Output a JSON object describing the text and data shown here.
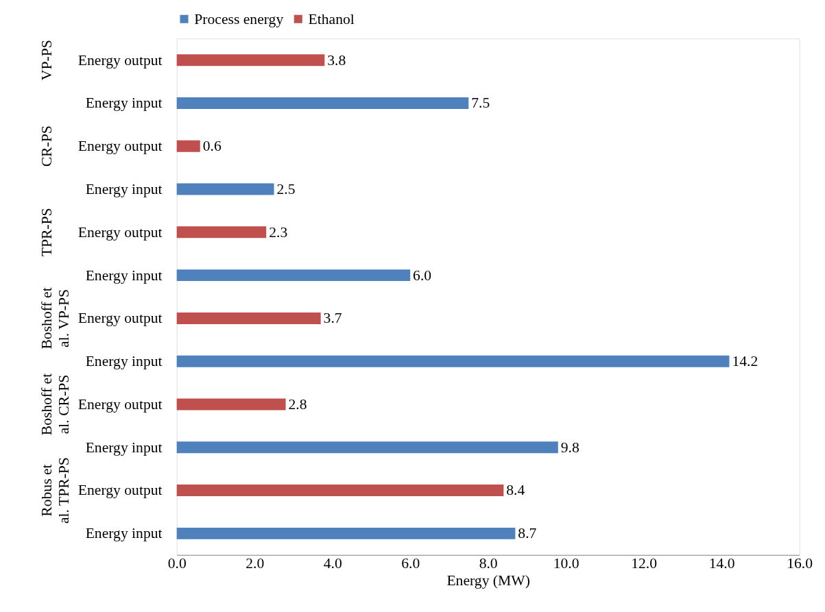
{
  "chart_data": {
    "type": "bar",
    "orientation": "horizontal",
    "xlabel": "Energy (MW)",
    "categories": [
      "Energy output",
      "Energy input",
      "Energy output",
      "Energy input",
      "Energy output",
      "Energy input",
      "Energy output",
      "Energy input",
      "Energy output",
      "Energy input",
      "Energy output",
      "Energy input"
    ],
    "annotations": [
      "VP-PS",
      "CR-PS",
      "TPR-PS",
      "Boshoff et al. VP-PS",
      "Boshoff et al. CR-PS",
      "Robus et al. TPR-PS"
    ],
    "series": [
      {
        "name": "Process energy",
        "color": "#4f81bd",
        "values": [
          null,
          7.5,
          null,
          2.5,
          null,
          6.0,
          null,
          14.2,
          null,
          9.8,
          null,
          8.7
        ],
        "value_labels": [
          null,
          "7.5",
          null,
          "2.5",
          null,
          "6.0",
          null,
          "14.2",
          null,
          "9.8",
          null,
          "8.7"
        ]
      },
      {
        "name": "Ethanol",
        "color": "#c0504d",
        "values": [
          3.8,
          null,
          0.6,
          null,
          2.3,
          null,
          3.7,
          null,
          2.8,
          null,
          8.4,
          null
        ],
        "value_labels": [
          "3.8",
          null,
          "0.6",
          null,
          "2.3",
          null,
          "3.7",
          null,
          "2.8",
          null,
          "8.4",
          null
        ]
      }
    ],
    "xlim": [
      0,
      16
    ],
    "xticks": [
      {
        "value": 0,
        "label": "0.0"
      },
      {
        "value": 2,
        "label": "2.0"
      },
      {
        "value": 4,
        "label": "4.0"
      },
      {
        "value": 6,
        "label": "6.0"
      },
      {
        "value": 8,
        "label": "8.0"
      },
      {
        "value": 10,
        "label": "10.0"
      },
      {
        "value": 12,
        "label": "12.0"
      },
      {
        "value": 14,
        "label": "14.0"
      },
      {
        "value": 16,
        "label": "16.0"
      }
    ],
    "grid": false,
    "legend": "top"
  }
}
